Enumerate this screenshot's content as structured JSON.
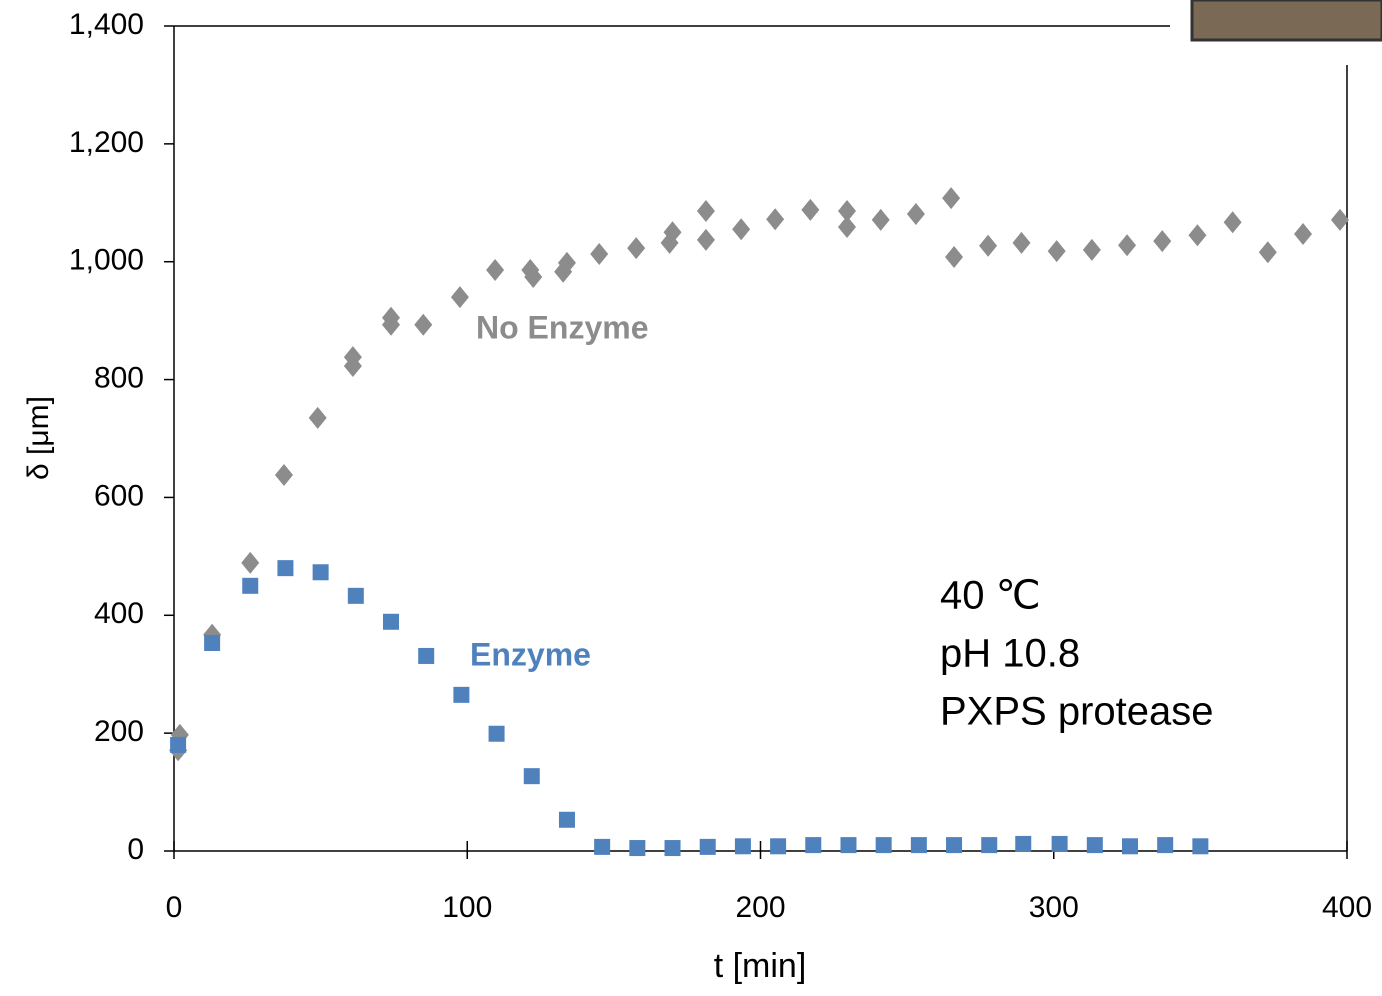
{
  "chart_data": {
    "type": "scatter",
    "xlabel": "t  [min]",
    "ylabel": "δ [μm]",
    "xlim": [
      0,
      400
    ],
    "xticks": [
      0,
      100,
      200,
      300,
      400
    ],
    "ylim": [
      0,
      1400
    ],
    "yticks": [
      0,
      200,
      400,
      600,
      800,
      {
        "value": 1000,
        "label": "1,000"
      },
      {
        "value": 1200,
        "label": "1,200"
      },
      {
        "value": 1400,
        "label": "1,400"
      }
    ],
    "series": [
      {
        "name": "No Enzyme",
        "color": "#8c8c8c",
        "marker": "diamond",
        "x": [
          1.4,
          2,
          13,
          26,
          37.5,
          49,
          61,
          61,
          74,
          74,
          85,
          97.5,
          109.5,
          121.5,
          122.5,
          132.7,
          134,
          145,
          157.6,
          169,
          170,
          181.4,
          181.4,
          193.4,
          205,
          217,
          229.5,
          229.5,
          241,
          253,
          265,
          266,
          277.6,
          289,
          301,
          313,
          325,
          337,
          349,
          361,
          373,
          385,
          397.6
        ],
        "values": [
          171,
          197,
          367,
          489,
          638,
          735,
          823,
          838,
          905,
          893,
          893,
          940,
          986,
          986,
          974,
          983,
          998,
          1013,
          1023,
          1032,
          1050,
          1037,
          1086,
          1055,
          1072,
          1088,
          1086,
          1059,
          1071,
          1081,
          1108,
          1008,
          1027,
          1032,
          1018,
          1020,
          1028,
          1035,
          1045,
          1067,
          1016,
          1047,
          1071
        ]
      },
      {
        "name": "Enzyme",
        "color": "#4f81bd",
        "marker": "square",
        "x": [
          1.4,
          13,
          26,
          38,
          50,
          62,
          74,
          86,
          98,
          110,
          122,
          134,
          146,
          158,
          170,
          182,
          194,
          206,
          218,
          230,
          242,
          254,
          266,
          278,
          289.6,
          302,
          314,
          326,
          338,
          350
        ],
        "values": [
          180,
          353,
          450,
          480,
          473,
          433,
          389,
          331,
          265,
          199,
          127,
          53,
          7,
          5,
          5,
          7,
          8,
          8,
          10,
          10,
          10,
          10,
          10,
          10,
          12,
          12,
          10,
          8,
          10,
          8
        ]
      }
    ],
    "annotations": [
      "40 ℃",
      "pH 10.8",
      "PXPS protease"
    ]
  }
}
